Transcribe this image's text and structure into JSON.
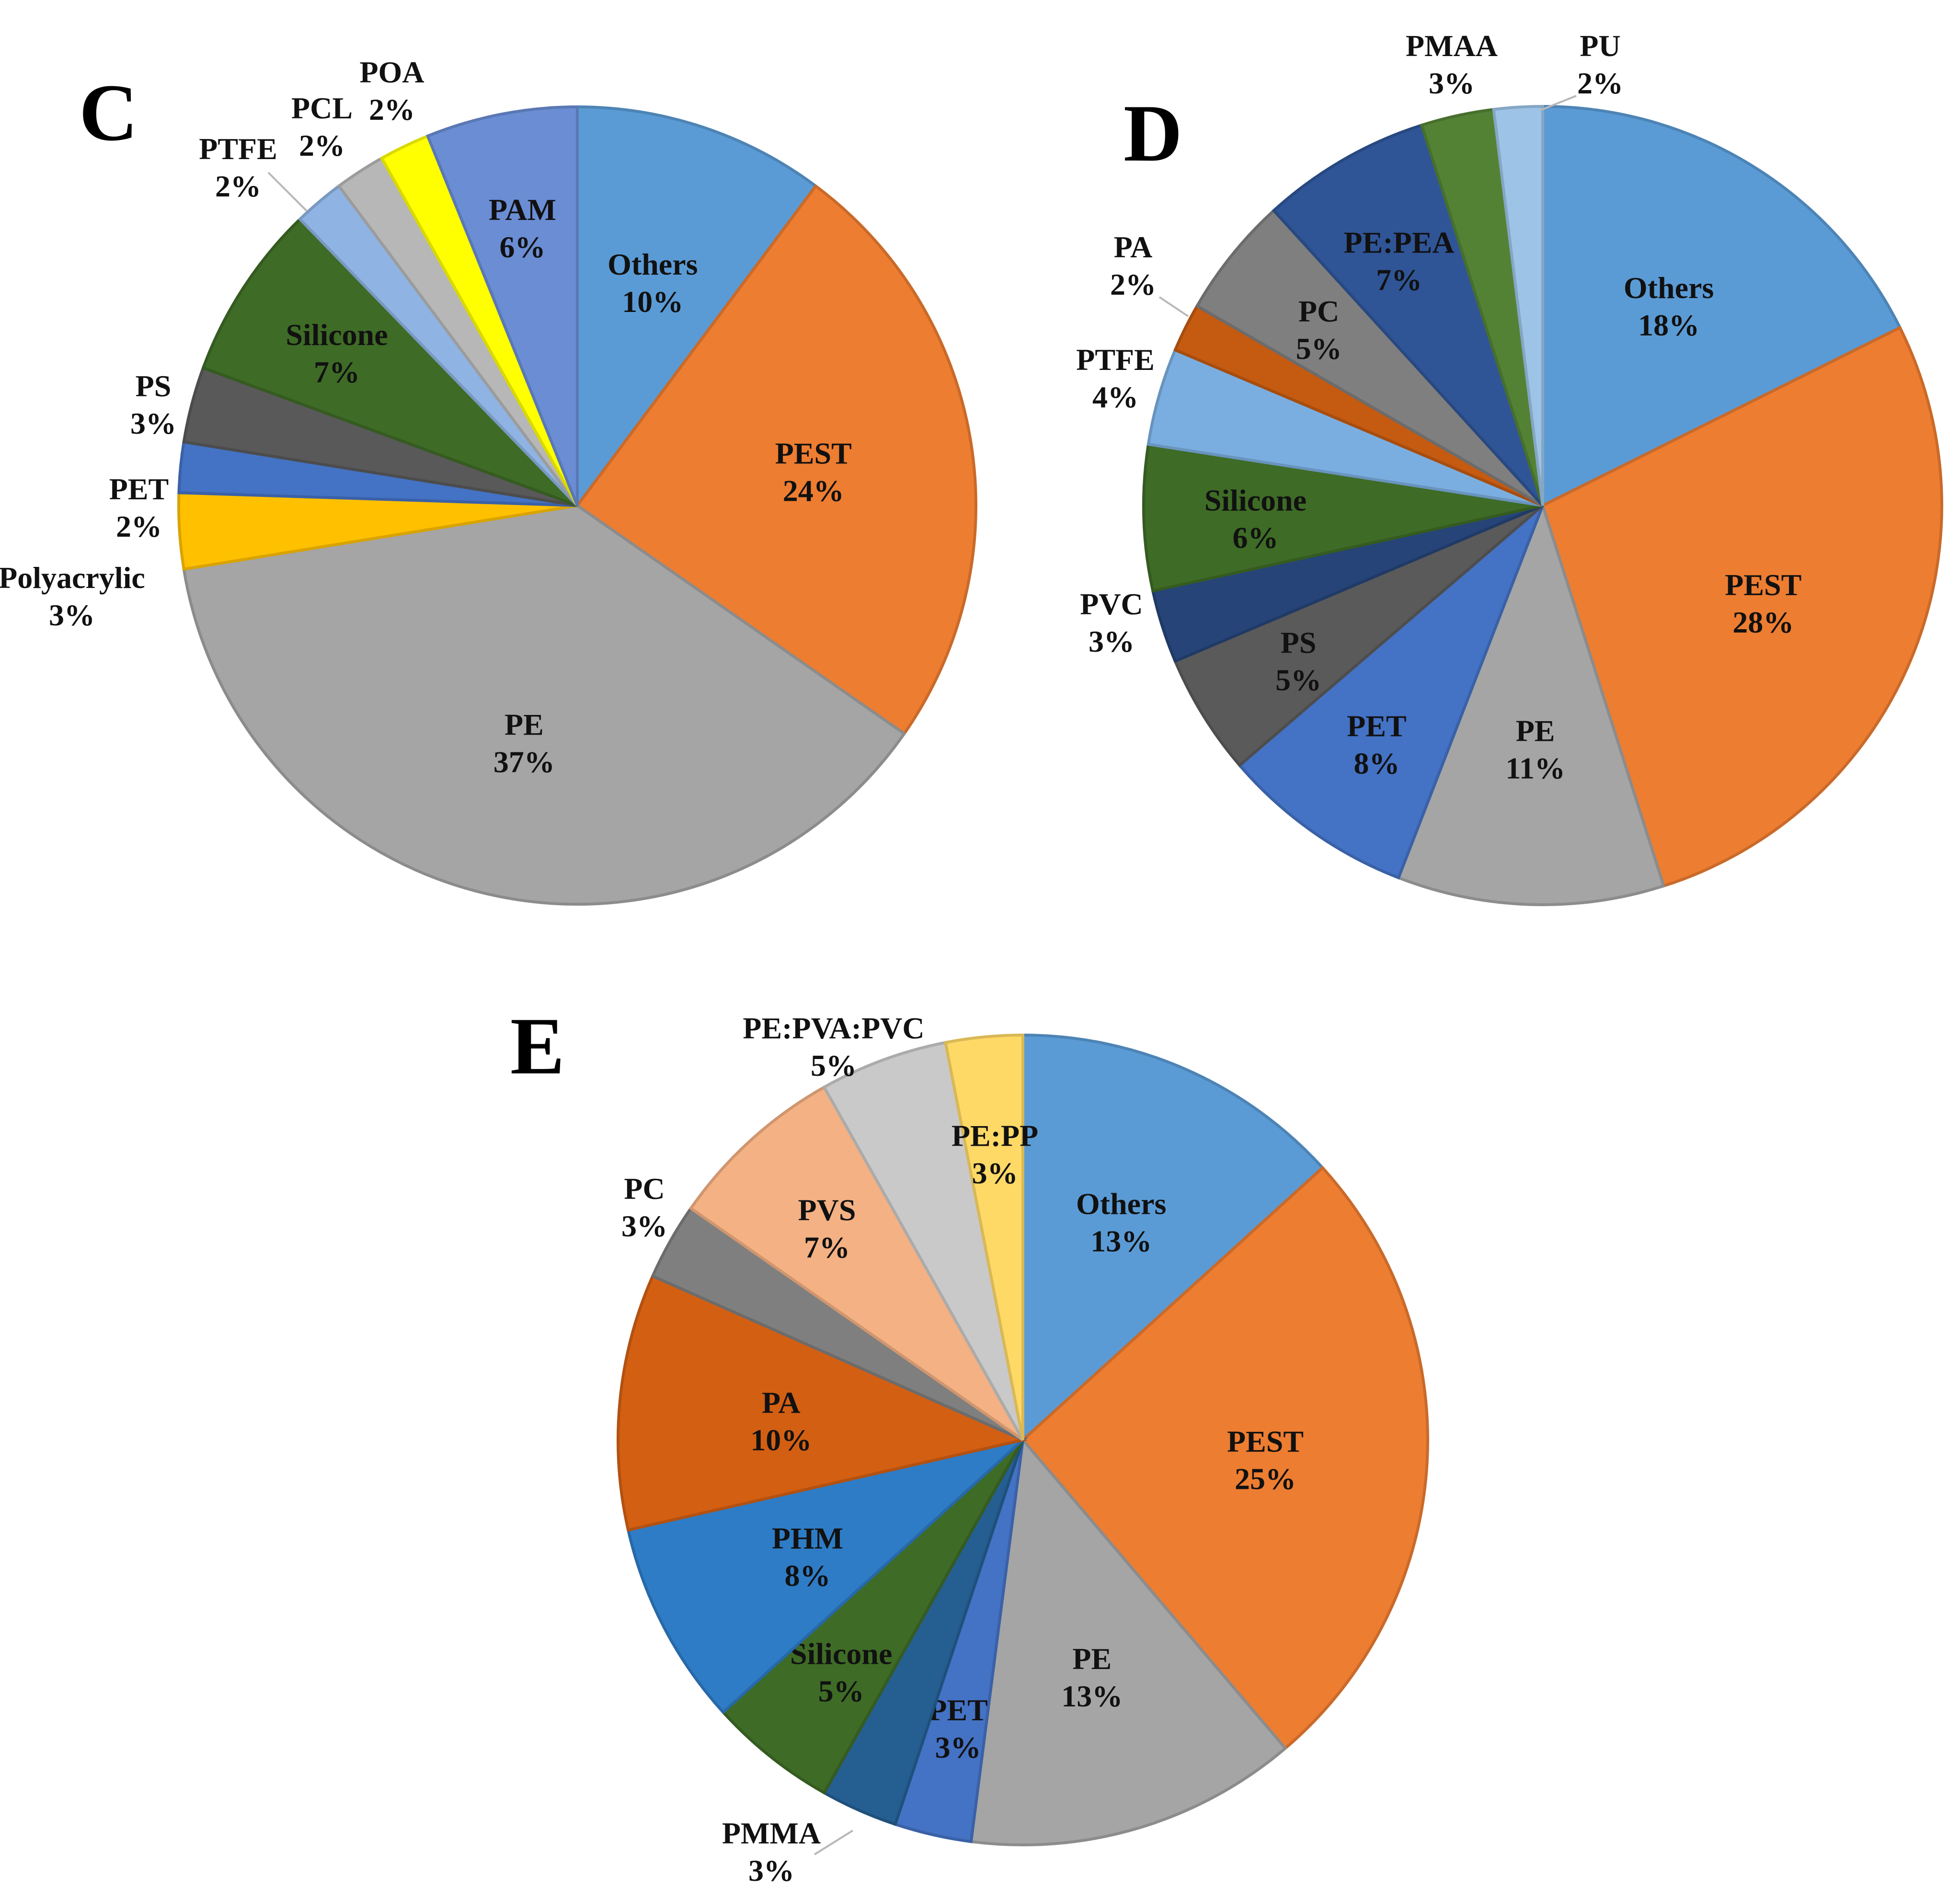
{
  "chart_data": [
    {
      "type": "pie",
      "panel": "C",
      "slices": [
        {
          "name": "Others",
          "pct": "10%",
          "value": 10,
          "color": "#5B9BD5",
          "label_inside": true
        },
        {
          "name": "PEST",
          "pct": "24%",
          "value": 24,
          "color": "#ED7D31",
          "label_inside": true
        },
        {
          "name": "PE",
          "pct": "37%",
          "value": 37,
          "color": "#A5A5A5",
          "label_inside": true
        },
        {
          "name": "Polyacrylic",
          "pct": "3%",
          "value": 3,
          "color": "#FFC000",
          "label_inside": false
        },
        {
          "name": "PET",
          "pct": "2%",
          "value": 2,
          "color": "#4472C4",
          "label_inside": false
        },
        {
          "name": "PS",
          "pct": "3%",
          "value": 3,
          "color": "#595959",
          "label_inside": false
        },
        {
          "name": "Silicone",
          "pct": "7%",
          "value": 7,
          "color": "#3E6B26",
          "label_inside": true
        },
        {
          "name": "PTFE",
          "pct": "2%",
          "value": 2,
          "color": "#8FB4E3",
          "label_inside": false
        },
        {
          "name": "PCL",
          "pct": "2%",
          "value": 2,
          "color": "#B7B7B7",
          "label_inside": false
        },
        {
          "name": "POA",
          "pct": "2%",
          "value": 2,
          "color": "#FFFF00",
          "label_inside": false
        },
        {
          "name": "PAM",
          "pct": "6%",
          "value": 6,
          "color": "#6A8DD4",
          "label_inside": true
        }
      ]
    },
    {
      "type": "pie",
      "panel": "D",
      "slices": [
        {
          "name": "Others",
          "pct": "18%",
          "value": 18,
          "color": "#5B9BD5",
          "label_inside": true
        },
        {
          "name": "PEST",
          "pct": "28%",
          "value": 28,
          "color": "#ED7D31",
          "label_inside": true
        },
        {
          "name": "PE",
          "pct": "11%",
          "value": 11,
          "color": "#A5A5A5",
          "label_inside": true
        },
        {
          "name": "PET",
          "pct": "8%",
          "value": 8,
          "color": "#4472C4",
          "label_inside": true
        },
        {
          "name": "PS",
          "pct": "5%",
          "value": 5,
          "color": "#5A5A5A",
          "label_inside": true
        },
        {
          "name": "PVC",
          "pct": "3%",
          "value": 3,
          "color": "#264478",
          "label_inside": false
        },
        {
          "name": "Silicone",
          "pct": "6%",
          "value": 6,
          "color": "#3E6B26",
          "label_inside": true
        },
        {
          "name": "PTFE",
          "pct": "4%",
          "value": 4,
          "color": "#7BAEE0",
          "label_inside": false
        },
        {
          "name": "PA",
          "pct": "2%",
          "value": 2,
          "color": "#C55A11",
          "label_inside": false
        },
        {
          "name": "PC",
          "pct": "5%",
          "value": 5,
          "color": "#7F7F7F",
          "label_inside": true
        },
        {
          "name": "PE:PEA",
          "pct": "7%",
          "value": 7,
          "color": "#2F5597",
          "label_inside": true
        },
        {
          "name": "PMAA",
          "pct": "3%",
          "value": 3,
          "color": "#548235",
          "label_inside": false
        },
        {
          "name": "PU",
          "pct": "2%",
          "value": 2,
          "color": "#9DC3E6",
          "label_inside": false
        }
      ]
    },
    {
      "type": "pie",
      "panel": "E",
      "slices": [
        {
          "name": "Others",
          "pct": "13%",
          "value": 13,
          "color": "#5B9BD5",
          "label_inside": true
        },
        {
          "name": "PEST",
          "pct": "25%",
          "value": 25,
          "color": "#ED7D31",
          "label_inside": true
        },
        {
          "name": "PE",
          "pct": "13%",
          "value": 13,
          "color": "#A5A5A5",
          "label_inside": true
        },
        {
          "name": "PET",
          "pct": "3%",
          "value": 3,
          "color": "#4472C4",
          "label_inside": true
        },
        {
          "name": "PMMA",
          "pct": "3%",
          "value": 3,
          "color": "#255E91",
          "label_inside": false
        },
        {
          "name": "Silicone",
          "pct": "5%",
          "value": 5,
          "color": "#3E6B26",
          "label_inside": true
        },
        {
          "name": "PHM",
          "pct": "8%",
          "value": 8,
          "color": "#2E7CC6",
          "label_inside": true
        },
        {
          "name": "PA",
          "pct": "10%",
          "value": 10,
          "color": "#D35F13",
          "label_inside": true
        },
        {
          "name": "PC",
          "pct": "3%",
          "value": 3,
          "color": "#7F7F7F",
          "label_inside": false
        },
        {
          "name": "PVS",
          "pct": "7%",
          "value": 7,
          "color": "#F4B183",
          "label_inside": true
        },
        {
          "name": "PE:PVA:PVC",
          "pct": "5%",
          "value": 5,
          "color": "#C9C9C9",
          "label_inside": false
        },
        {
          "name": "PE:PP",
          "pct": "3%",
          "value": 3,
          "color": "#FFD966",
          "label_inside": true
        }
      ]
    }
  ]
}
